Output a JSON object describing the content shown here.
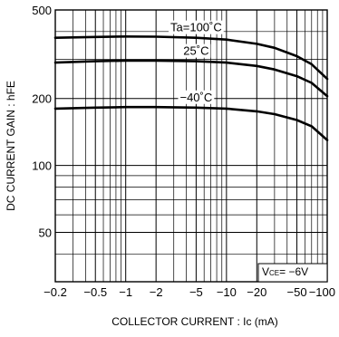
{
  "chart_data": {
    "type": "line",
    "title": "",
    "xlabel": "COLLECTOR CURRENT : Ic (mA)",
    "ylabel": "DC CURRENT GAIN : hFE",
    "x_scale": "log",
    "y_scale": "log",
    "xlim": [
      -0.2,
      -100
    ],
    "ylim": [
      30,
      500
    ],
    "x_ticks": [
      {
        "value": -0.2,
        "label": "−0.2"
      },
      {
        "value": -0.5,
        "label": "−0.5"
      },
      {
        "value": -1,
        "label": "−1"
      },
      {
        "value": -2,
        "label": "−2"
      },
      {
        "value": -5,
        "label": "−5"
      },
      {
        "value": -10,
        "label": "−10"
      },
      {
        "value": -20,
        "label": "−20"
      },
      {
        "value": -50,
        "label": "−50"
      },
      {
        "value": -100,
        "label": "−100"
      }
    ],
    "y_ticks": [
      {
        "value": 500,
        "label": "500"
      },
      {
        "value": 200,
        "label": "200"
      },
      {
        "value": 100,
        "label": "100"
      },
      {
        "value": 50,
        "label": "50"
      }
    ],
    "grid": true,
    "annotation": {
      "main": "V",
      "sub": "CE",
      "rest": "= −6V"
    },
    "series": [
      {
        "name": "Ta=100˚C",
        "x": [
          -0.2,
          -0.5,
          -1,
          -2,
          -5,
          -10,
          -20,
          -30,
          -50,
          -70,
          -100
        ],
        "y": [
          375,
          378,
          380,
          379,
          375,
          368,
          352,
          338,
          310,
          285,
          245
        ]
      },
      {
        "name": "25˚C",
        "x": [
          -0.2,
          -0.5,
          -1,
          -2,
          -5,
          -10,
          -20,
          -30,
          -50,
          -70,
          -100
        ],
        "y": [
          290,
          294,
          296,
          296,
          294,
          290,
          280,
          270,
          252,
          235,
          205
        ]
      },
      {
        "name": "−40˚C",
        "x": [
          -0.2,
          -0.5,
          -1,
          -2,
          -5,
          -10,
          -20,
          -30,
          -50,
          -70,
          -100
        ],
        "y": [
          180,
          182,
          183,
          183,
          182,
          180,
          175,
          170,
          160,
          150,
          130
        ]
      }
    ]
  }
}
